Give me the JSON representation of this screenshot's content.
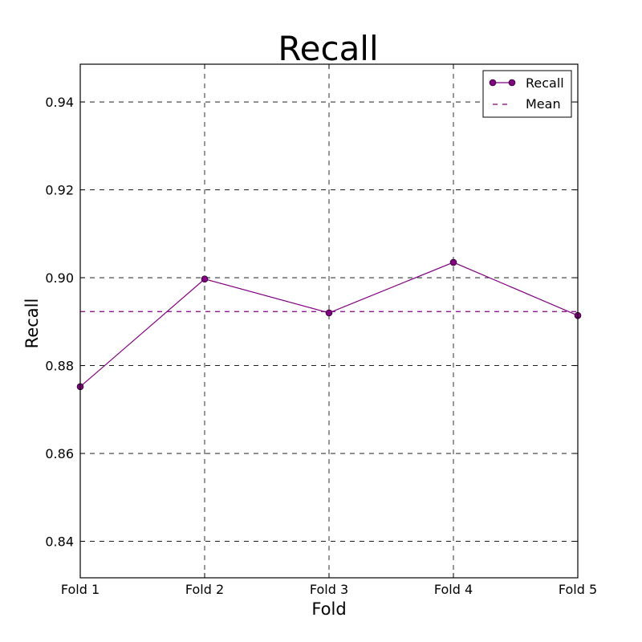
{
  "chart_data": {
    "type": "line",
    "title": "Recall",
    "xlabel": "Fold",
    "ylabel": "Recall",
    "categories": [
      "Fold 1",
      "Fold 2",
      "Fold 3",
      "Fold 4",
      "Fold 5"
    ],
    "ylim": [
      0.8317,
      0.9486
    ],
    "yticks": [
      0.84,
      0.86,
      0.88,
      0.9,
      0.92,
      0.94
    ],
    "ytick_labels": [
      "0.84",
      "0.86",
      "0.88",
      "0.90",
      "0.92",
      "0.94"
    ],
    "grid": true,
    "legend_position": "top-right",
    "series": [
      {
        "name": "Recall",
        "values": [
          0.8752,
          0.8997,
          0.892,
          0.9035,
          0.8914
        ],
        "color": "#800080",
        "marker": "circle",
        "line_style": "solid"
      },
      {
        "name": "Mean",
        "values": [
          0.8923,
          0.8923,
          0.8923,
          0.8923,
          0.8923
        ],
        "color": "#800080",
        "marker": "none",
        "line_style": "dashed"
      }
    ]
  }
}
